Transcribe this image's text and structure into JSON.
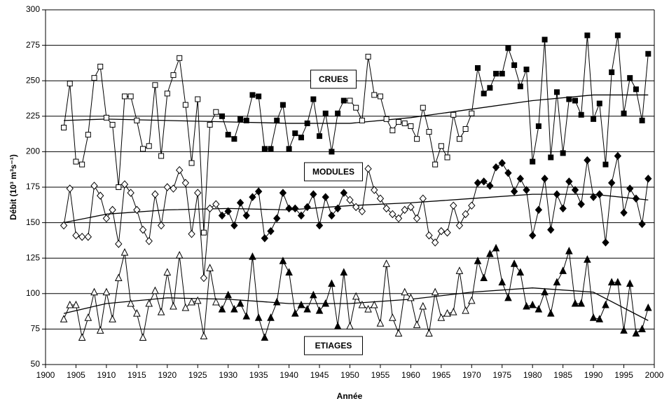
{
  "chart_data": {
    "type": "line",
    "x_label": "Année",
    "y_label": "Débit (10³ m³s⁻¹)",
    "xlim": [
      1900,
      2000
    ],
    "xticks": [
      1900,
      1905,
      1910,
      1915,
      1920,
      1925,
      1930,
      1935,
      1940,
      1945,
      1950,
      1955,
      1960,
      1965,
      1970,
      1975,
      1980,
      1985,
      1990,
      1995,
      2000
    ],
    "ylim": [
      50,
      300
    ],
    "yticks": [
      50,
      75,
      100,
      125,
      150,
      175,
      200,
      225,
      250,
      275,
      300
    ],
    "grid": true,
    "filled_periods": [
      [
        1929,
        1949
      ],
      [
        1971,
        1999
      ]
    ],
    "x": [
      1903,
      1904,
      1905,
      1906,
      1907,
      1908,
      1909,
      1910,
      1911,
      1912,
      1913,
      1914,
      1915,
      1916,
      1917,
      1918,
      1919,
      1920,
      1921,
      1922,
      1923,
      1924,
      1925,
      1926,
      1927,
      1928,
      1929,
      1930,
      1931,
      1932,
      1933,
      1934,
      1935,
      1936,
      1937,
      1938,
      1939,
      1940,
      1941,
      1942,
      1943,
      1944,
      1945,
      1946,
      1947,
      1948,
      1949,
      1950,
      1951,
      1952,
      1953,
      1954,
      1955,
      1956,
      1957,
      1958,
      1959,
      1960,
      1961,
      1962,
      1963,
      1964,
      1965,
      1966,
      1967,
      1968,
      1969,
      1970,
      1971,
      1972,
      1973,
      1974,
      1975,
      1976,
      1977,
      1978,
      1979,
      1980,
      1981,
      1982,
      1983,
      1984,
      1985,
      1986,
      1987,
      1988,
      1989,
      1990,
      1991,
      1992,
      1993,
      1994,
      1995,
      1996,
      1997,
      1998,
      1999
    ],
    "trend_x": [
      1903,
      1910,
      1920,
      1930,
      1940,
      1950,
      1960,
      1970,
      1980,
      1990,
      1999
    ],
    "series": [
      {
        "name": "CRUES",
        "color": "#000000",
        "marker": "square",
        "values": [
          217,
          248,
          193,
          191,
          212,
          252,
          260,
          224,
          219,
          175,
          239,
          239,
          222,
          202,
          204,
          247,
          197,
          241,
          254,
          266,
          233,
          192,
          237,
          143,
          219,
          228,
          225,
          212,
          209,
          223,
          222,
          240,
          239,
          202,
          202,
          222,
          233,
          202,
          213,
          210,
          220,
          237,
          211,
          227,
          200,
          227,
          236,
          236,
          231,
          222,
          267,
          240,
          239,
          223,
          215,
          221,
          220,
          218,
          209,
          231,
          214,
          191,
          204,
          196,
          226,
          209,
          216,
          227,
          259,
          241,
          245,
          255,
          255,
          273,
          261,
          246,
          258,
          193,
          218,
          279,
          196,
          242,
          199,
          237,
          236,
          226,
          282,
          223,
          234,
          191,
          256,
          282,
          227,
          252,
          244,
          222,
          269
        ],
        "trend": [
          222,
          223,
          222,
          221,
          220,
          220,
          224,
          230,
          236,
          240,
          240
        ]
      },
      {
        "name": "MODULES",
        "color": "#000000",
        "marker": "diamond",
        "values": [
          148,
          174,
          141,
          140,
          140,
          176,
          169,
          153,
          159,
          135,
          177,
          171,
          159,
          145,
          137,
          170,
          148,
          175,
          174,
          187,
          178,
          142,
          171,
          111,
          160,
          163,
          155,
          158,
          148,
          164,
          155,
          168,
          172,
          139,
          144,
          153,
          171,
          160,
          160,
          155,
          161,
          170,
          148,
          168,
          155,
          160,
          171,
          166,
          161,
          158,
          188,
          173,
          167,
          160,
          156,
          153,
          159,
          161,
          153,
          167,
          141,
          136,
          144,
          143,
          162,
          148,
          156,
          162,
          178,
          179,
          176,
          189,
          192,
          185,
          172,
          181,
          173,
          141,
          159,
          181,
          145,
          170,
          160,
          179,
          173,
          163,
          194,
          168,
          170,
          136,
          178,
          197,
          157,
          174,
          167,
          149,
          181
        ],
        "trend": [
          150,
          156,
          159,
          160,
          159,
          162,
          164,
          167,
          170,
          170,
          166
        ]
      },
      {
        "name": "ETIAGES",
        "color": "#000000",
        "marker": "triangle",
        "values": [
          82,
          92,
          92,
          69,
          83,
          101,
          74,
          101,
          82,
          111,
          129,
          93,
          86,
          69,
          93,
          102,
          87,
          115,
          91,
          127,
          90,
          94,
          95,
          70,
          118,
          94,
          89,
          99,
          89,
          93,
          84,
          126,
          83,
          69,
          83,
          94,
          123,
          115,
          86,
          92,
          89,
          99,
          88,
          93,
          107,
          77,
          115,
          77,
          98,
          92,
          89,
          92,
          79,
          121,
          83,
          72,
          101,
          97,
          78,
          91,
          72,
          101,
          83,
          86,
          87,
          116,
          88,
          95,
          123,
          111,
          128,
          132,
          108,
          97,
          121,
          115,
          91,
          92,
          89,
          101,
          86,
          108,
          116,
          130,
          93,
          93,
          124,
          83,
          82,
          92,
          108,
          108,
          74,
          107,
          72,
          75,
          90
        ],
        "trend": [
          86,
          93,
          97,
          96,
          93,
          93,
          96,
          101,
          104,
          101,
          81
        ]
      }
    ]
  }
}
